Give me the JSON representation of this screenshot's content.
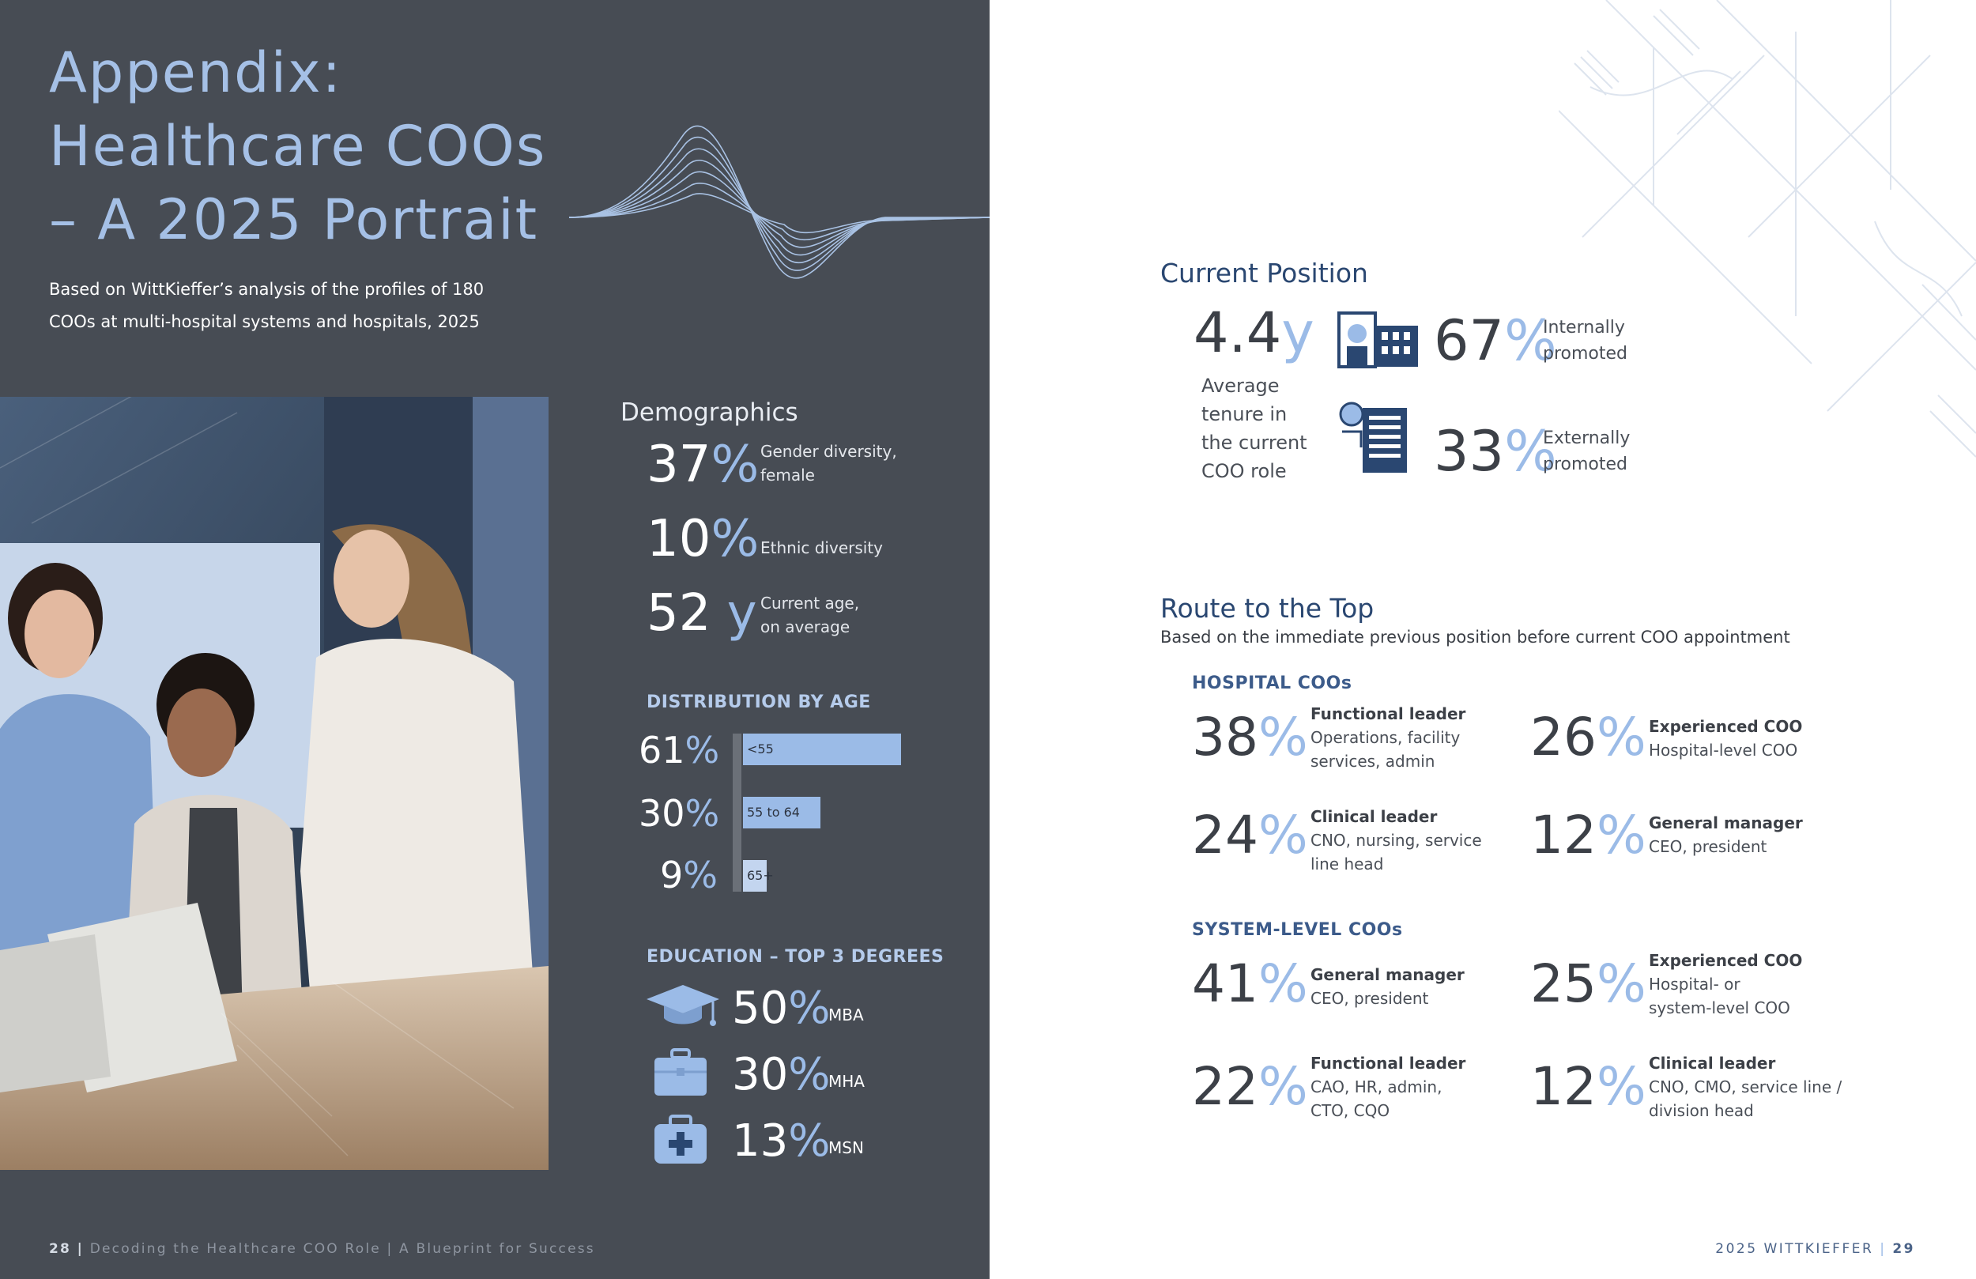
{
  "left": {
    "title": [
      "Appendix:",
      "Healthcare COOs",
      "– A 2025 Portrait"
    ],
    "subtitle": [
      "Based on WittKieffer’s analysis of the profiles of 180",
      "COOs at multi-hospital systems and hospitals, 2025"
    ],
    "demographics": {
      "heading": "Demographics",
      "items": [
        {
          "value": "37",
          "unit": "%",
          "label": [
            "Gender diversity,",
            "female"
          ]
        },
        {
          "value": "10",
          "unit": "%",
          "label": [
            "Ethnic diversity"
          ]
        },
        {
          "value": "52",
          "unit": " y",
          "label": [
            "Current age,",
            "on average"
          ]
        }
      ]
    },
    "distribution_by_age": {
      "heading": "DISTRIBUTION BY AGE",
      "items": [
        {
          "value": "61",
          "unit": "%",
          "label": "<55",
          "fraction": 0.61
        },
        {
          "value": "30",
          "unit": "%",
          "label": "55 to 64",
          "fraction": 0.3
        },
        {
          "value": "9",
          "unit": "%",
          "label": "65+",
          "fraction": 0.09
        }
      ]
    },
    "education": {
      "heading": "EDUCATION – TOP 3 DEGREES",
      "items": [
        {
          "value": "50",
          "unit": "%",
          "label": "MBA",
          "icon": "graduation-cap-icon"
        },
        {
          "value": "30",
          "unit": "%",
          "label": "MHA",
          "icon": "briefcase-icon"
        },
        {
          "value": "13",
          "unit": "%",
          "label": "MSN",
          "icon": "medical-kit-icon"
        }
      ]
    },
    "footer": {
      "page": "28",
      "text": "Decoding the Healthcare COO Role | A Blueprint for Success"
    }
  },
  "right": {
    "current_position": {
      "heading": "Current Position",
      "tenure": {
        "value": "4.4",
        "unit": "y",
        "label": [
          "Average",
          "tenure in",
          "the current",
          "COO role"
        ]
      },
      "internal": {
        "value": "67",
        "unit": "%",
        "label": [
          "Internally",
          "promoted"
        ],
        "icon": "hospital-building-icon"
      },
      "external": {
        "value": "33",
        "unit": "%",
        "label": [
          "Externally",
          "promoted"
        ],
        "icon": "office-building-icon"
      }
    },
    "route": {
      "heading": "Route to the Top",
      "subheading": "Based on the immediate previous position before current COO appointment",
      "hospital": {
        "heading": "HOSPITAL COOs",
        "items": [
          {
            "value": "38",
            "unit": "%",
            "title": "Functional leader",
            "desc": [
              "Operations, facility",
              "services, admin"
            ]
          },
          {
            "value": "26",
            "unit": "%",
            "title": "Experienced COO",
            "desc": [
              "Hospital-level COO"
            ]
          },
          {
            "value": "24",
            "unit": "%",
            "title": "Clinical leader",
            "desc": [
              "CNO, nursing, service",
              "line head"
            ]
          },
          {
            "value": "12",
            "unit": "%",
            "title": "General manager",
            "desc": [
              "CEO, president"
            ]
          }
        ]
      },
      "system": {
        "heading": "SYSTEM-LEVEL COOs",
        "items": [
          {
            "value": "41",
            "unit": "%",
            "title": "General manager",
            "desc": [
              "CEO, president"
            ]
          },
          {
            "value": "25",
            "unit": "%",
            "title": "Experienced COO",
            "desc": [
              "Hospital- or",
              "system-level COO"
            ]
          },
          {
            "value": "22",
            "unit": "%",
            "title": "Functional leader",
            "desc": [
              "CAO, HR, admin,",
              "CTO, CQO"
            ]
          },
          {
            "value": "12",
            "unit": "%",
            "title": "Clinical leader",
            "desc": [
              "CNO, CMO, service line /",
              "division head"
            ]
          }
        ]
      }
    },
    "footer": {
      "text": "2025 WITTKIEFFER",
      "sep": "|",
      "page": "29"
    }
  },
  "colors": {
    "panel": "#474c54",
    "accent": "#9bbbe7",
    "navy": "#2a4771"
  }
}
